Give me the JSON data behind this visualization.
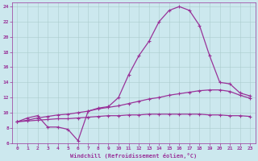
{
  "xlabel": "Windchill (Refroidissement éolien,°C)",
  "bg_color": "#cce8ee",
  "grid_color": "#aacccc",
  "line_color": "#993399",
  "xlim": [
    -0.5,
    23.5
  ],
  "ylim": [
    6,
    24.5
  ],
  "xticks": [
    0,
    1,
    2,
    3,
    4,
    5,
    6,
    7,
    8,
    9,
    10,
    11,
    12,
    13,
    14,
    15,
    16,
    17,
    18,
    19,
    20,
    21,
    22,
    23
  ],
  "yticks": [
    6,
    8,
    10,
    12,
    14,
    16,
    18,
    20,
    22,
    24
  ],
  "line1_x": [
    0,
    1,
    2,
    3,
    4,
    5,
    6,
    7,
    8,
    9,
    10,
    11,
    12,
    13,
    14,
    15,
    16,
    17,
    18,
    19,
    20,
    21,
    22,
    23
  ],
  "line1_y": [
    8.8,
    9.3,
    9.6,
    8.1,
    8.1,
    7.8,
    6.3,
    10.2,
    10.6,
    10.8,
    12.0,
    15.0,
    17.5,
    19.4,
    22.0,
    23.5,
    24.0,
    23.5,
    21.5,
    17.5,
    14.0,
    13.8,
    12.6,
    12.2
  ],
  "line2_x": [
    0,
    1,
    2,
    3,
    4,
    5,
    6,
    7,
    8,
    9,
    10,
    11,
    12,
    13,
    14,
    15,
    16,
    17,
    18,
    19,
    20,
    21,
    22,
    23
  ],
  "line2_y": [
    8.8,
    9.0,
    9.3,
    9.5,
    9.7,
    9.8,
    10.0,
    10.2,
    10.5,
    10.7,
    10.9,
    11.2,
    11.5,
    11.8,
    12.0,
    12.3,
    12.5,
    12.7,
    12.9,
    13.0,
    13.0,
    12.8,
    12.3,
    11.9
  ],
  "line3_x": [
    0,
    1,
    2,
    3,
    4,
    5,
    6,
    7,
    8,
    9,
    10,
    11,
    12,
    13,
    14,
    15,
    16,
    17,
    18,
    19,
    20,
    21,
    22,
    23
  ],
  "line3_y": [
    8.8,
    8.9,
    9.0,
    9.1,
    9.2,
    9.2,
    9.3,
    9.4,
    9.5,
    9.6,
    9.6,
    9.7,
    9.7,
    9.8,
    9.8,
    9.8,
    9.8,
    9.8,
    9.8,
    9.7,
    9.7,
    9.6,
    9.6,
    9.5
  ]
}
